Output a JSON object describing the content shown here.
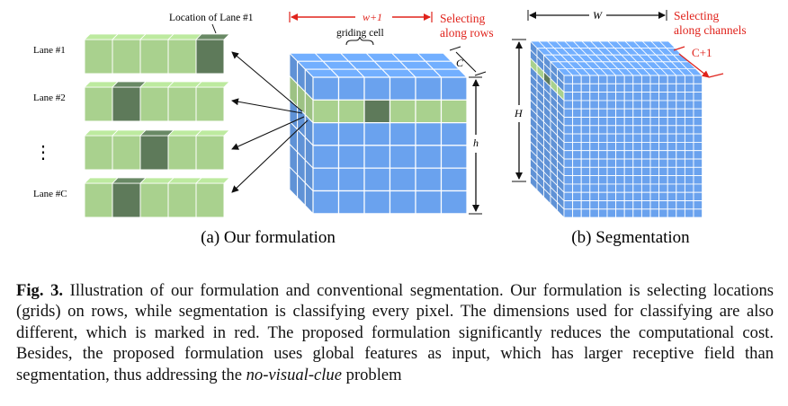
{
  "figure": {
    "left": {
      "top_label": "Location of Lane #1",
      "lanes": [
        "Lane #1",
        "Lane #2",
        "Lane #C"
      ],
      "ellipsis": "⋮",
      "dim_width": "w+1",
      "dim_depth": "C",
      "dim_height": "h",
      "griding_label": "griding cell",
      "red_note_line1": "Selecting",
      "red_note_line2": "along rows",
      "subcaption": "(a) Our formulation"
    },
    "right": {
      "dim_width": "W",
      "dim_height": "H",
      "red_note_line1": "Selecting",
      "red_note_line2": "along channels",
      "red_depth": "C+1",
      "subcaption": "(b) Segmentation"
    },
    "colors": {
      "blue": "#6aa2ee",
      "green": "#a9d18e",
      "dark_green": "#5e7a5a",
      "red": "#e0231c",
      "grid": "#ffffff"
    }
  },
  "caption": {
    "label": "Fig. 3.",
    "text_before_em": " Illustration of our formulation and conventional segmentation. Our formulation is selecting locations (grids) on rows, while segmentation is classifying every pixel. The dimensions used for classifying are also different, which is marked in red. The proposed formulation significantly reduces the computational cost. Besides, the proposed formulation uses global features as input, which has larger receptive field than segmentation, thus addressing the ",
    "em": "no-visual-clue",
    "text_after_em": " problem"
  }
}
